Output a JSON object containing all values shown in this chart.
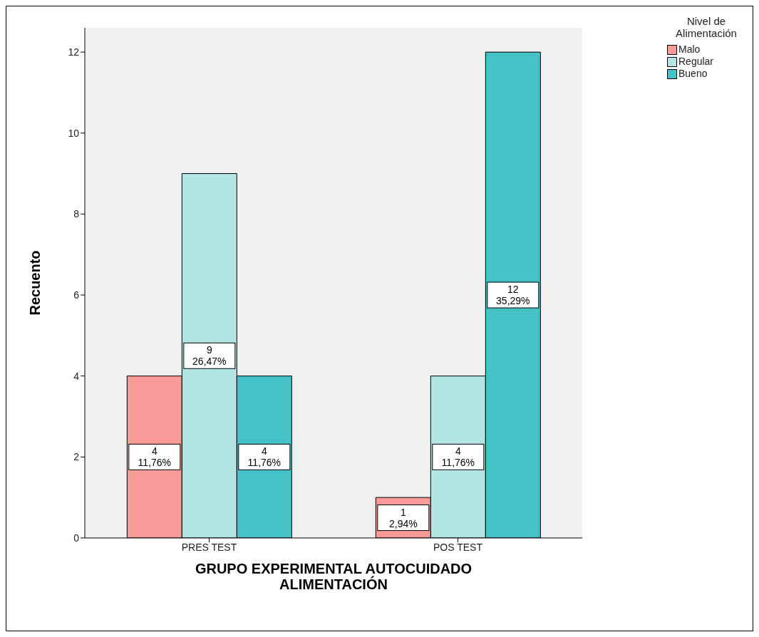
{
  "chart_data": {
    "type": "bar",
    "xlabel": "GRUPO EXPERIMENTAL AUTOCUIDADO ALIMENTACIÓN",
    "ylabel": "Recuento",
    "legend_title": "Nivel de Alimentación",
    "categories": [
      "PRES TEST",
      "POS TEST"
    ],
    "series": [
      {
        "name": "Malo",
        "color": "#f99b99",
        "values": [
          4,
          1
        ],
        "value_labels": [
          "4\n11,76%",
          "1\n2,94%"
        ]
      },
      {
        "name": "Regular",
        "color": "#b3e5e5",
        "values": [
          9,
          4
        ],
        "value_labels": [
          "9\n26,47%",
          "4\n11,76%"
        ]
      },
      {
        "name": "Bueno",
        "color": "#45c2c5",
        "values": [
          4,
          12
        ],
        "value_labels": [
          "4\n11,76%",
          "12\n35,29%"
        ]
      }
    ],
    "ylim": [
      0,
      12.6
    ],
    "yticks": [
      0,
      2,
      4,
      6,
      8,
      10,
      12
    ],
    "grid": false,
    "legend": "top right"
  }
}
